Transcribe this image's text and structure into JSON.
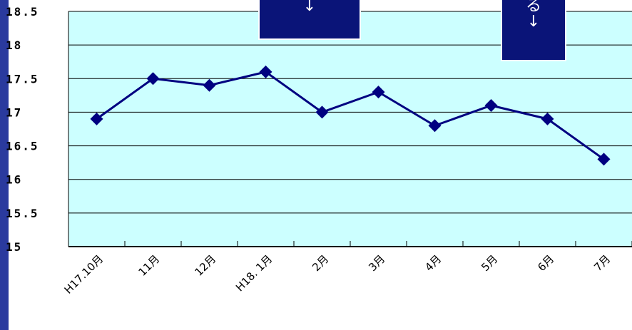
{
  "chart_data": {
    "type": "line",
    "categories": [
      "H17.10月",
      "11月",
      "12月",
      "H18. 1月",
      "2月",
      "3月",
      "4月",
      "5月",
      "6月",
      "7月"
    ],
    "series": [
      {
        "values": [
          16.9,
          17.5,
          17.4,
          17.6,
          17.0,
          17.3,
          16.8,
          17.1,
          16.9,
          16.3
        ]
      }
    ],
    "yticks": [
      "18.5",
      "18",
      "17.5",
      "17",
      "16.5",
      "16",
      "15.5",
      "15"
    ],
    "ylim": [
      15,
      18.5
    ],
    "grid": true,
    "title": "",
    "xlabel": "",
    "ylabel": ""
  },
  "callouts": [
    {
      "text": "↓"
    },
    {
      "text": "る",
      "arrow": "↓"
    }
  ],
  "colors": {
    "frame_background": "#2a3a9e",
    "plot_background": "#ccffff",
    "series_line": "#000080",
    "marker": "#000080",
    "label_text": "#000000",
    "tick_text_background": "#ffffff",
    "callout_fill": "#0a1478",
    "callout_text": "#ffffff"
  }
}
